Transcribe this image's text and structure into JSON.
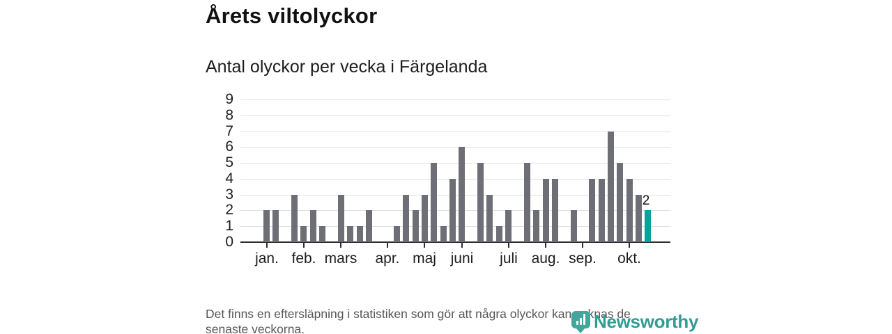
{
  "chart_data": {
    "type": "bar",
    "title": "Årets viltolyckor",
    "subtitle": "Antal olyckor per vecka i Färgelanda",
    "x_unit": "vecka",
    "values": [
      2,
      2,
      0,
      3,
      1,
      2,
      1,
      0,
      3,
      1,
      1,
      2,
      0,
      0,
      1,
      3,
      2,
      3,
      5,
      1,
      4,
      6,
      0,
      5,
      3,
      1,
      2,
      0,
      5,
      2,
      4,
      4,
      0,
      2,
      0,
      4,
      4,
      7,
      5,
      4,
      3,
      2
    ],
    "highlight_last_index": 41,
    "last_value_label": "2",
    "y_ticks": [
      0,
      1,
      2,
      3,
      4,
      5,
      6,
      7,
      8,
      9
    ],
    "ylim": [
      0,
      9
    ],
    "grid": "horizontal",
    "legend": "none",
    "month_ticks": [
      {
        "label": "jan.",
        "week": 1
      },
      {
        "label": "feb.",
        "week": 5
      },
      {
        "label": "mars",
        "week": 9
      },
      {
        "label": "apr.",
        "week": 14
      },
      {
        "label": "maj",
        "week": 18
      },
      {
        "label": "juni",
        "week": 22
      },
      {
        "label": "juli",
        "week": 27
      },
      {
        "label": "aug.",
        "week": 31
      },
      {
        "label": "sep.",
        "week": 35
      },
      {
        "label": "okt.",
        "week": 40
      }
    ],
    "colors": {
      "bar": "#6e6e76",
      "highlight": "#00a49c",
      "gridline": "#e1e1e1",
      "axis": "#2e2e2e"
    }
  },
  "footnote": {
    "line1": "Det finns en eftersläpning i statistiken som gör att några olyckor kan saknas de",
    "line2": "senaste veckorna."
  },
  "logo": {
    "wordmark": "Newsworthy",
    "color": "#2f9d94"
  }
}
